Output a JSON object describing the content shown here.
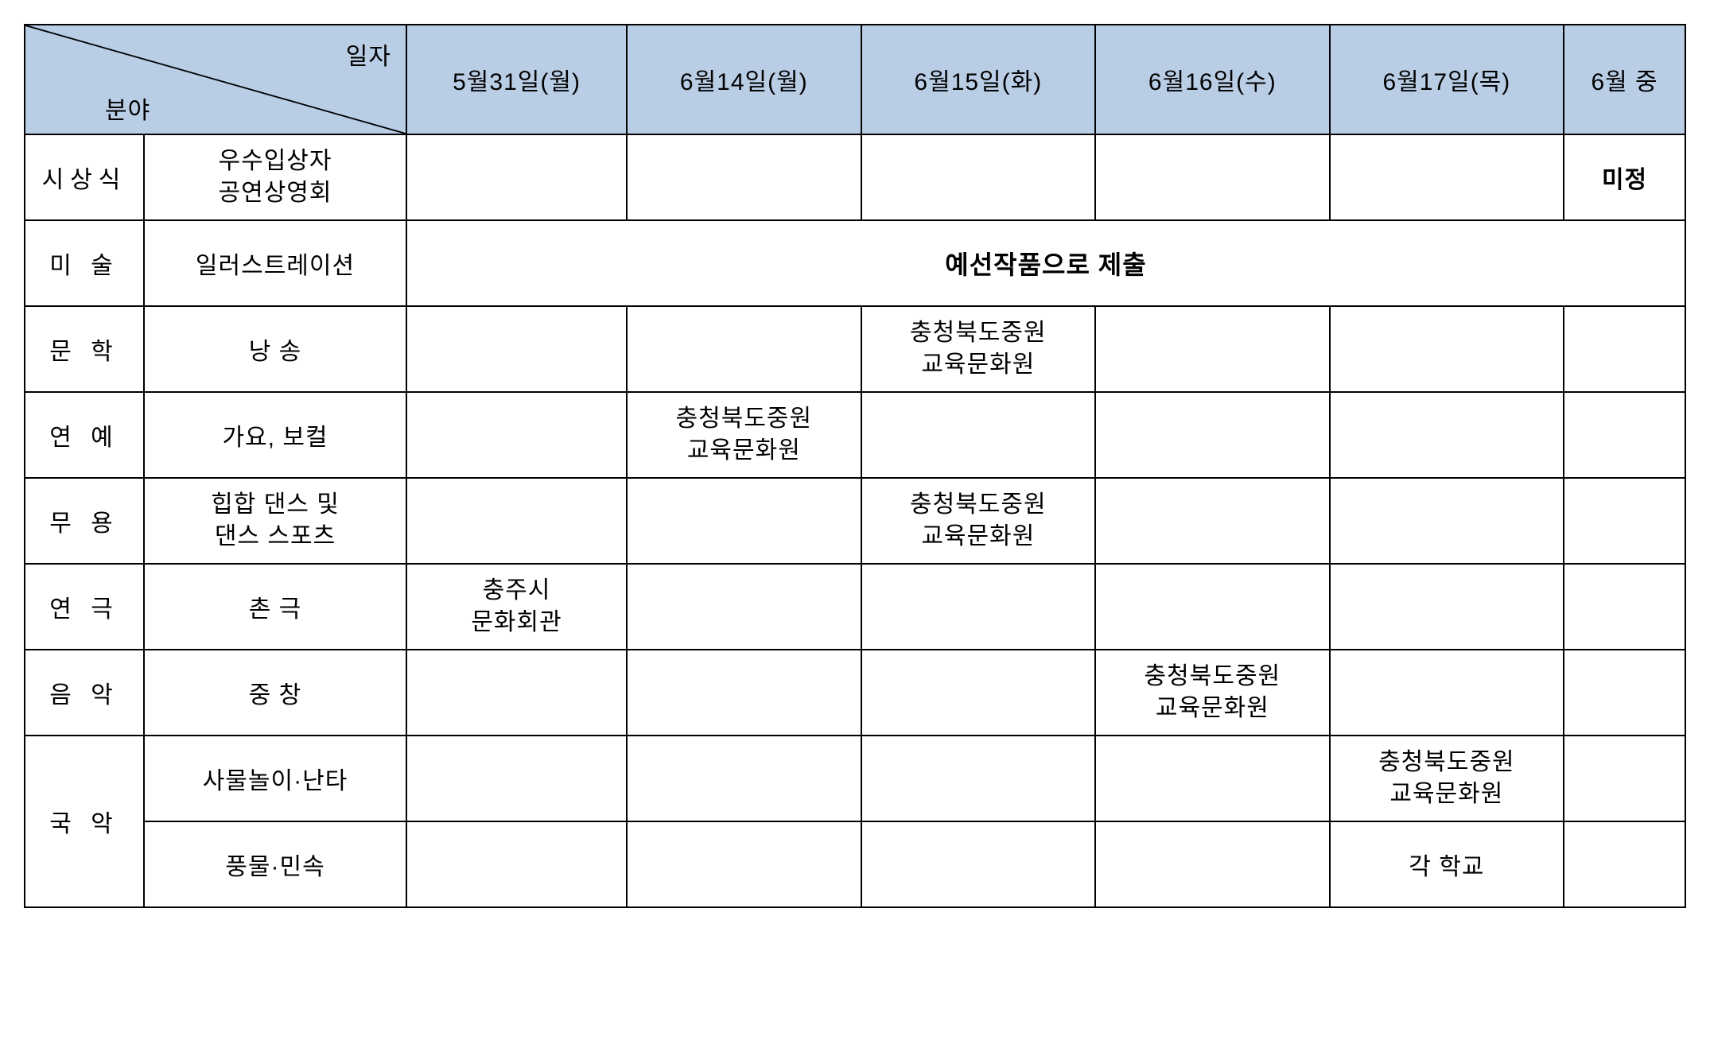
{
  "header": {
    "diag_date": "일자",
    "diag_category": "분야",
    "dates": [
      "5월31일(월)",
      "6월14일(월)",
      "6월15일(화)",
      "6월16일(수)",
      "6월17일(목)",
      "6월 중"
    ]
  },
  "rows": [
    {
      "category": "시상식",
      "subcategory": "우수입상자\n공연상영회",
      "cells": [
        "",
        "",
        "",
        "",
        "",
        "미정"
      ],
      "bold_last": true
    },
    {
      "category": "미 술",
      "subcategory": "일러스트레이션",
      "spanned": true,
      "span_text": "예선작품으로 제출"
    },
    {
      "category": "문 학",
      "subcategory": "낭 송",
      "cells": [
        "",
        "",
        "충청북도중원\n교육문화원",
        "",
        "",
        ""
      ]
    },
    {
      "category": "연 예",
      "subcategory": "가요, 보컬",
      "cells": [
        "",
        "충청북도중원\n교육문화원",
        "",
        "",
        "",
        ""
      ]
    },
    {
      "category": "무 용",
      "subcategory": "힙합 댄스 및\n댄스 스포츠",
      "cells": [
        "",
        "",
        "충청북도중원\n교육문화원",
        "",
        "",
        ""
      ]
    },
    {
      "category": "연 극",
      "subcategory": "촌 극",
      "cells": [
        "충주시\n문화회관",
        "",
        "",
        "",
        "",
        ""
      ]
    },
    {
      "category": "음 악",
      "subcategory": "중 창",
      "cells": [
        "",
        "",
        "",
        "충청북도중원\n교육문화원",
        "",
        ""
      ]
    },
    {
      "category": "국 악",
      "rowspan": 2,
      "subcategory": "사물놀이·난타",
      "cells": [
        "",
        "",
        "",
        "",
        "충청북도중원\n교육문화원",
        ""
      ]
    },
    {
      "subcategory": "풍물·민속",
      "cells": [
        "",
        "",
        "",
        "",
        "각 학교",
        ""
      ]
    }
  ],
  "colors": {
    "header_bg": "#b9cde5",
    "border": "#000000",
    "background": "#ffffff"
  }
}
